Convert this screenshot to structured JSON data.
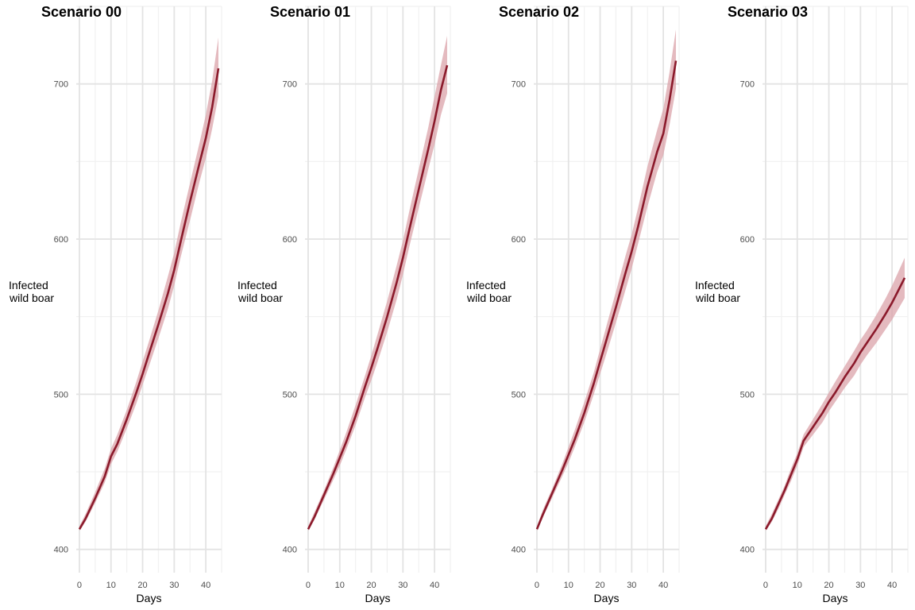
{
  "colors": {
    "line": "#8b1a2b",
    "ribbon": "#dba3aa",
    "grid_major": "#e3e3e3",
    "grid_minor": "#f1f1f1"
  },
  "chart_data": [
    {
      "type": "line",
      "title": "Scenario 00",
      "xlabel": "Days",
      "ylabel": [
        "Infected",
        "wild boar"
      ],
      "xlim": [
        -1,
        45
      ],
      "ylim": [
        385,
        750
      ],
      "xticks": [
        0,
        10,
        20,
        30,
        40
      ],
      "yticks": [
        400,
        500,
        600,
        700
      ],
      "grid": true,
      "x": [
        0,
        2,
        5,
        8,
        10,
        12,
        15,
        18,
        20,
        22,
        25,
        28,
        30,
        32,
        35,
        38,
        40,
        42,
        44
      ],
      "mean": [
        413,
        420,
        433,
        447,
        460,
        468,
        484,
        501,
        513,
        526,
        545,
        565,
        580,
        598,
        624,
        649,
        665,
        685,
        710
      ],
      "lower": [
        412,
        418,
        430,
        443,
        455,
        463,
        478,
        494,
        506,
        518,
        536,
        555,
        570,
        588,
        612,
        637,
        652,
        671,
        692
      ],
      "upper": [
        415,
        423,
        437,
        452,
        465,
        474,
        490,
        508,
        521,
        534,
        554,
        576,
        591,
        610,
        636,
        662,
        680,
        702,
        730
      ]
    },
    {
      "type": "line",
      "title": "Scenario 01",
      "xlabel": "Days",
      "ylabel": [
        "Infected",
        "wild boar"
      ],
      "xlim": [
        -1,
        45
      ],
      "ylim": [
        385,
        750
      ],
      "xticks": [
        0,
        10,
        20,
        30,
        40
      ],
      "yticks": [
        400,
        500,
        600,
        700
      ],
      "grid": true,
      "x": [
        0,
        2,
        5,
        8,
        10,
        12,
        15,
        18,
        20,
        22,
        25,
        28,
        30,
        32,
        35,
        38,
        40,
        42,
        44
      ],
      "mean": [
        413,
        421,
        435,
        449,
        459,
        469,
        486,
        505,
        517,
        530,
        550,
        572,
        588,
        606,
        632,
        658,
        676,
        696,
        712
      ],
      "lower": [
        412,
        419,
        432,
        445,
        454,
        464,
        480,
        498,
        509,
        521,
        540,
        561,
        577,
        595,
        620,
        645,
        661,
        680,
        694
      ],
      "upper": [
        415,
        424,
        438,
        453,
        464,
        475,
        493,
        512,
        525,
        539,
        560,
        583,
        599,
        618,
        645,
        672,
        692,
        712,
        731
      ]
    },
    {
      "type": "line",
      "title": "Scenario 02",
      "xlabel": "Days",
      "ylabel": [
        "Infected",
        "wild boar"
      ],
      "xlim": [
        -1,
        45
      ],
      "ylim": [
        385,
        750
      ],
      "xticks": [
        0,
        10,
        20,
        30,
        40
      ],
      "yticks": [
        400,
        500,
        600,
        700
      ],
      "grid": true,
      "x": [
        0,
        2,
        5,
        8,
        10,
        12,
        15,
        18,
        20,
        22,
        25,
        28,
        30,
        32,
        35,
        38,
        40,
        42,
        44
      ],
      "mean": [
        413,
        423,
        437,
        451,
        461,
        471,
        488,
        507,
        521,
        535,
        556,
        578,
        592,
        608,
        634,
        656,
        668,
        690,
        715
      ],
      "lower": [
        412,
        421,
        434,
        447,
        456,
        466,
        482,
        500,
        513,
        526,
        546,
        567,
        581,
        597,
        621,
        643,
        654,
        674,
        697
      ],
      "upper": [
        415,
        426,
        440,
        455,
        466,
        477,
        495,
        514,
        529,
        544,
        566,
        589,
        603,
        620,
        647,
        670,
        684,
        708,
        735
      ]
    },
    {
      "type": "line",
      "title": "Scenario 03",
      "xlabel": "Days",
      "ylabel": [
        "Infected",
        "wild boar"
      ],
      "xlim": [
        -1,
        45
      ],
      "ylim": [
        385,
        750
      ],
      "xticks": [
        0,
        10,
        20,
        30,
        40
      ],
      "yticks": [
        400,
        500,
        600,
        700
      ],
      "grid": true,
      "x": [
        0,
        2,
        4,
        6,
        8,
        10,
        12,
        15,
        18,
        20,
        22,
        25,
        28,
        30,
        32,
        35,
        38,
        40,
        42,
        44
      ],
      "mean": [
        413,
        420,
        429,
        438,
        448,
        458,
        470,
        479,
        488,
        495,
        501,
        511,
        520,
        527,
        533,
        542,
        552,
        559,
        567,
        575
      ],
      "lower": [
        412,
        418,
        426,
        435,
        444,
        454,
        466,
        474,
        482,
        489,
        495,
        504,
        512,
        519,
        525,
        533,
        542,
        548,
        555,
        562
      ],
      "upper": [
        415,
        423,
        432,
        441,
        452,
        462,
        474,
        484,
        494,
        501,
        508,
        518,
        528,
        535,
        541,
        551,
        562,
        570,
        579,
        588
      ]
    }
  ]
}
